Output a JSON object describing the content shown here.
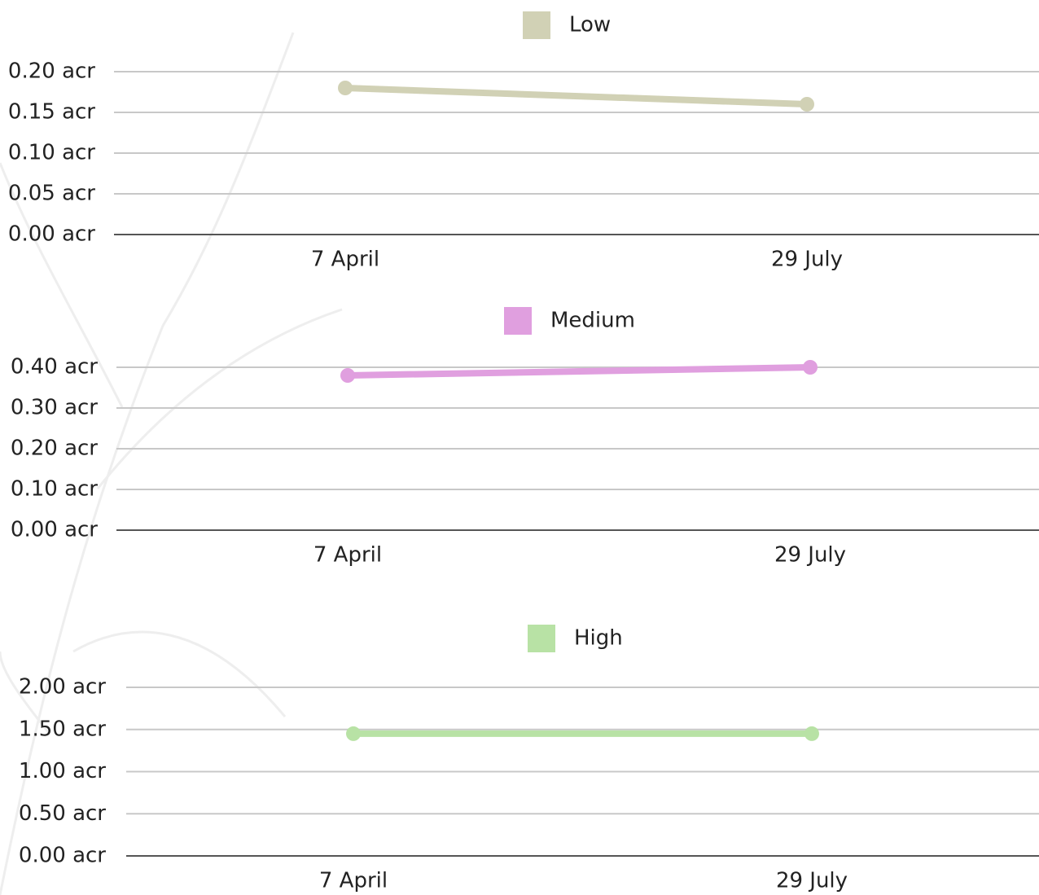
{
  "chart_data": [
    {
      "type": "line",
      "categories": [
        "7 April",
        "29 July"
      ],
      "series": [
        {
          "name": "Low",
          "color": "#d1d1b5",
          "values": [
            0.18,
            0.16
          ]
        }
      ],
      "ylim": [
        0,
        0.2
      ],
      "yticks": [
        {
          "value": 0,
          "label": "0.00 acr"
        },
        {
          "value": 0.05,
          "label": "0.05 acr"
        },
        {
          "value": 0.1,
          "label": "0.10 acr"
        },
        {
          "value": 0.15,
          "label": "0.15 acr"
        },
        {
          "value": 0.2,
          "label": "0.20 acr"
        }
      ],
      "grid": true
    },
    {
      "type": "line",
      "categories": [
        "7 April",
        "29 July"
      ],
      "series": [
        {
          "name": "Medium",
          "color": "#e09fdf",
          "values": [
            0.38,
            0.4
          ]
        }
      ],
      "ylim": [
        0,
        0.4
      ],
      "yticks": [
        {
          "value": 0,
          "label": "0.00 acr"
        },
        {
          "value": 0.1,
          "label": "0.10 acr"
        },
        {
          "value": 0.2,
          "label": "0.20 acr"
        },
        {
          "value": 0.3,
          "label": "0.30 acr"
        },
        {
          "value": 0.4,
          "label": "0.40 acr"
        }
      ],
      "grid": true
    },
    {
      "type": "line",
      "categories": [
        "7 April",
        "29 July"
      ],
      "series": [
        {
          "name": "High",
          "color": "#b8e2a5",
          "values": [
            1.45,
            1.45
          ]
        }
      ],
      "ylim": [
        0,
        2
      ],
      "yticks": [
        {
          "value": 0,
          "label": "0.00 acr"
        },
        {
          "value": 0.5,
          "label": "0.50 acr"
        },
        {
          "value": 1,
          "label": "1.00 acr"
        },
        {
          "value": 1.5,
          "label": "1.50 acr"
        },
        {
          "value": 2,
          "label": "2.00 acr"
        }
      ],
      "grid": true
    }
  ]
}
